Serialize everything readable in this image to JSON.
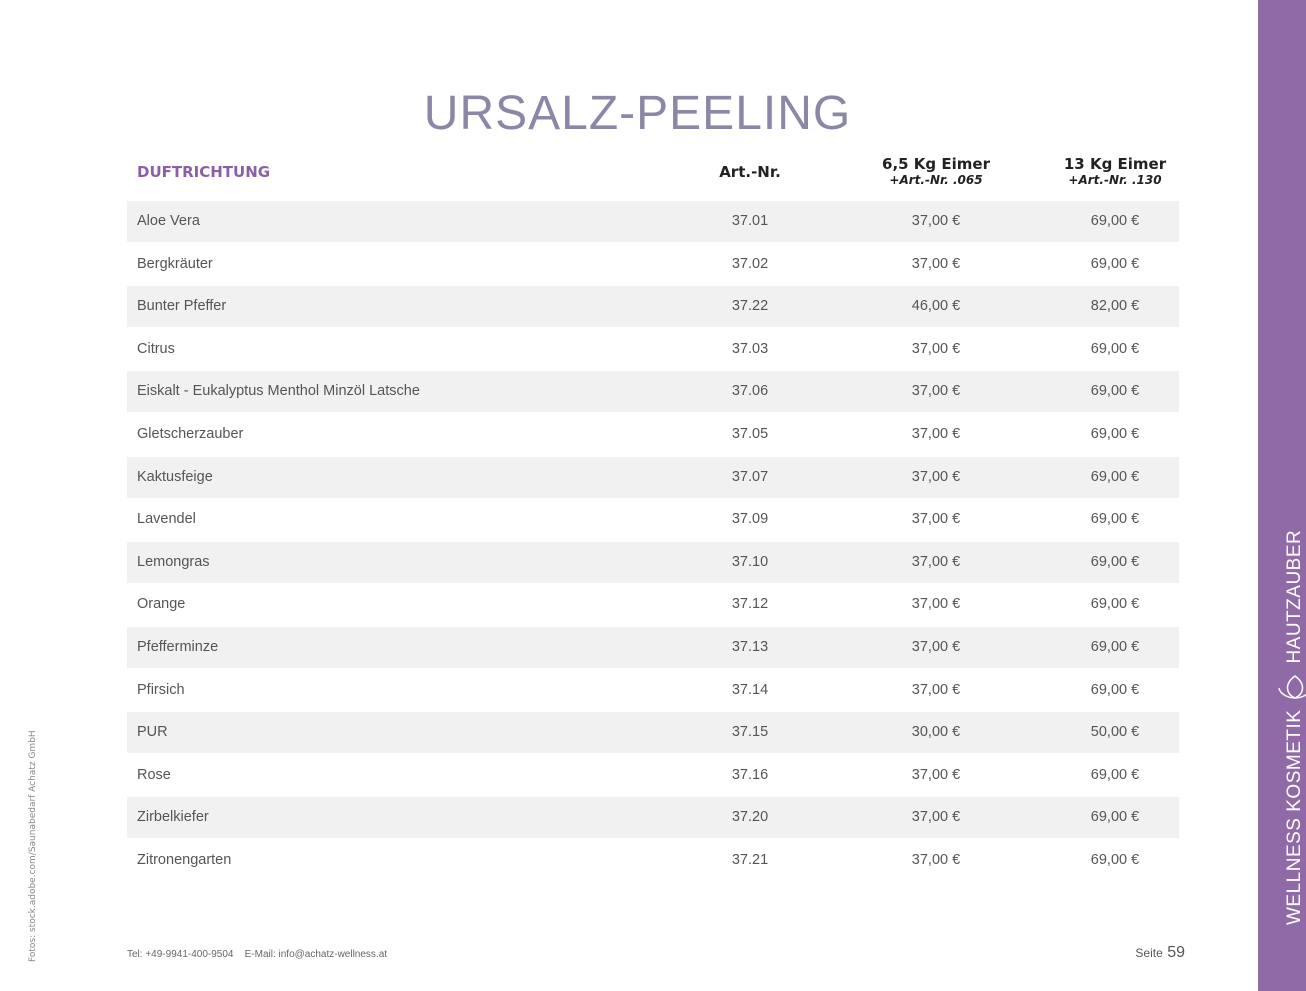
{
  "header": {
    "title": "URSALZ-PEELING"
  },
  "table": {
    "columns": [
      {
        "label": "DUFTRICHTUNG"
      },
      {
        "label": "Art.-Nr."
      },
      {
        "label": "6,5 Kg Eimer",
        "sub": "+Art.-Nr. .065"
      },
      {
        "label": "13 Kg Eimer",
        "sub": "+Art.-Nr. .130"
      }
    ],
    "rows": [
      [
        "Aloe Vera",
        "37.01",
        "37,00 €",
        "69,00 €"
      ],
      [
        "Bergkräuter",
        "37.02",
        "37,00 €",
        "69,00 €"
      ],
      [
        "Bunter Pfeffer",
        "37.22",
        "46,00 €",
        "82,00 €"
      ],
      [
        "Citrus",
        "37.03",
        "37,00 €",
        "69,00 €"
      ],
      [
        "Eiskalt - Eukalyptus Menthol Minzöl Latsche",
        "37.06",
        "37,00 €",
        "69,00 €"
      ],
      [
        "Gletscherzauber",
        "37.05",
        "37,00 €",
        "69,00 €"
      ],
      [
        "Kaktusfeige",
        "37.07",
        "37,00 €",
        "69,00 €"
      ],
      [
        "Lavendel",
        "37.09",
        "37,00 €",
        "69,00 €"
      ],
      [
        "Lemongras",
        "37.10",
        "37,00 €",
        "69,00 €"
      ],
      [
        "Orange",
        "37.12",
        "37,00 €",
        "69,00 €"
      ],
      [
        "Pfefferminze",
        "37.13",
        "37,00 €",
        "69,00 €"
      ],
      [
        "Pfirsich",
        "37.14",
        "37,00 €",
        "69,00 €"
      ],
      [
        "PUR",
        "37.15",
        "30,00 €",
        "50,00 €"
      ],
      [
        "Rose",
        "37.16",
        "37,00 €",
        "69,00 €"
      ],
      [
        "Zirbelkiefer",
        "37.20",
        "37,00 €",
        "69,00 €"
      ],
      [
        "Zitronengarten",
        "37.21",
        "37,00 €",
        "69,00 €"
      ]
    ]
  },
  "footer": {
    "tel": "Tel: +49-9941-400-9504",
    "email": "E-Mail: info@achatz-wellness.at",
    "page_label": "Seite",
    "page_number": "59"
  },
  "sidebar": {
    "left": "WELLNESS KOSMETIK",
    "right": "HAUTZAUBER"
  },
  "credit": "Fotos: stock.adobe.com/Saunabedarf Achatz GmbH"
}
